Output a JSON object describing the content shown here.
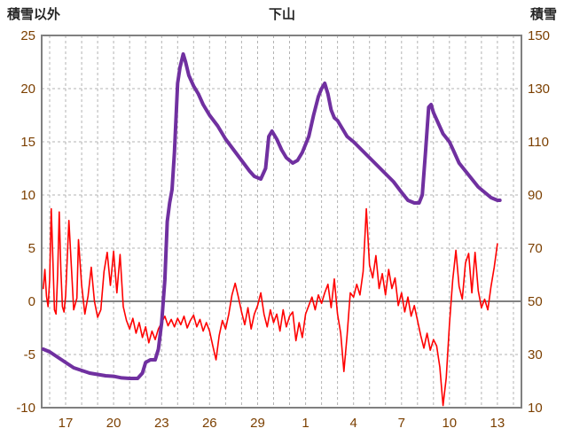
{
  "header": {
    "left_axis_title": "積雪以外",
    "chart_title": "下山",
    "right_axis_title": "積雪"
  },
  "colors": {
    "background": "#ffffff",
    "frame": "#808080",
    "zero_line": "#808080",
    "gridline": "#b3b3b3",
    "tick_label": "#7b3f00",
    "header_text": "#262626",
    "series_other": "#ff0000",
    "series_snow": "#7030a0"
  },
  "chart_data": {
    "type": "line",
    "title": "下山",
    "grid": true,
    "legend_position": "none",
    "x_domain": [
      15.5,
      45.5
    ],
    "x_gridline_step": 1,
    "x_ticks": [
      {
        "x": 17,
        "label": "17"
      },
      {
        "x": 20,
        "label": "20"
      },
      {
        "x": 23,
        "label": "23"
      },
      {
        "x": 26,
        "label": "26"
      },
      {
        "x": 29,
        "label": "29"
      },
      {
        "x": 32,
        "label": "1"
      },
      {
        "x": 35,
        "label": "4"
      },
      {
        "x": 38,
        "label": "7"
      },
      {
        "x": 41,
        "label": "10"
      },
      {
        "x": 44,
        "label": "13"
      }
    ],
    "left_axis": {
      "label": "積雪以外",
      "min": -10,
      "max": 25,
      "tick_step": 5
    },
    "right_axis": {
      "label": "積雪",
      "min": 10,
      "max": 150,
      "tick_step": 20
    },
    "series": [
      {
        "name": "積雪以外",
        "axis": "left",
        "color": "#ff0000",
        "width": 1.6,
        "points": [
          [
            15.6,
            1.2
          ],
          [
            15.7,
            3.0
          ],
          [
            15.8,
            0.5
          ],
          [
            15.9,
            -0.5
          ],
          [
            16.0,
            2.0
          ],
          [
            16.1,
            8.7
          ],
          [
            16.2,
            4.0
          ],
          [
            16.3,
            -0.8
          ],
          [
            16.4,
            -1.2
          ],
          [
            16.5,
            2.5
          ],
          [
            16.6,
            8.4
          ],
          [
            16.7,
            3.0
          ],
          [
            16.8,
            -0.5
          ],
          [
            16.9,
            -1.0
          ],
          [
            17.0,
            0.5
          ],
          [
            17.2,
            7.6
          ],
          [
            17.4,
            2.0
          ],
          [
            17.5,
            -0.8
          ],
          [
            17.7,
            0.3
          ],
          [
            17.8,
            5.8
          ],
          [
            18.0,
            1.5
          ],
          [
            18.2,
            -1.2
          ],
          [
            18.4,
            0.5
          ],
          [
            18.6,
            3.2
          ],
          [
            18.8,
            0.0
          ],
          [
            19.0,
            -1.5
          ],
          [
            19.2,
            -0.8
          ],
          [
            19.4,
            2.8
          ],
          [
            19.6,
            4.6
          ],
          [
            19.8,
            1.5
          ],
          [
            20.0,
            4.7
          ],
          [
            20.2,
            0.8
          ],
          [
            20.4,
            4.4
          ],
          [
            20.6,
            -0.5
          ],
          [
            20.8,
            -1.8
          ],
          [
            21.0,
            -2.6
          ],
          [
            21.2,
            -1.6
          ],
          [
            21.4,
            -3.0
          ],
          [
            21.6,
            -2.0
          ],
          [
            21.8,
            -3.4
          ],
          [
            22.0,
            -2.4
          ],
          [
            22.2,
            -3.9
          ],
          [
            22.4,
            -2.8
          ],
          [
            22.6,
            -3.6
          ],
          [
            22.8,
            -2.6
          ],
          [
            23.0,
            -2.0
          ],
          [
            23.2,
            -1.4
          ],
          [
            23.4,
            -2.3
          ],
          [
            23.6,
            -1.7
          ],
          [
            23.8,
            -2.4
          ],
          [
            24.0,
            -1.6
          ],
          [
            24.2,
            -2.2
          ],
          [
            24.4,
            -1.4
          ],
          [
            24.6,
            -2.5
          ],
          [
            24.8,
            -1.8
          ],
          [
            25.0,
            -1.3
          ],
          [
            25.2,
            -2.4
          ],
          [
            25.4,
            -1.7
          ],
          [
            25.6,
            -2.8
          ],
          [
            25.8,
            -2.0
          ],
          [
            26.0,
            -2.8
          ],
          [
            26.2,
            -4.2
          ],
          [
            26.4,
            -5.5
          ],
          [
            26.6,
            -3.2
          ],
          [
            26.8,
            -1.8
          ],
          [
            27.0,
            -2.6
          ],
          [
            27.2,
            -1.2
          ],
          [
            27.4,
            0.6
          ],
          [
            27.6,
            1.7
          ],
          [
            27.8,
            0.4
          ],
          [
            28.0,
            -1.0
          ],
          [
            28.2,
            -2.2
          ],
          [
            28.4,
            -0.6
          ],
          [
            28.6,
            -2.6
          ],
          [
            28.8,
            -1.2
          ],
          [
            29.0,
            -0.4
          ],
          [
            29.2,
            0.8
          ],
          [
            29.4,
            -1.2
          ],
          [
            29.6,
            -2.4
          ],
          [
            29.8,
            -0.8
          ],
          [
            30.0,
            -2.0
          ],
          [
            30.2,
            -1.2
          ],
          [
            30.4,
            -2.8
          ],
          [
            30.6,
            -0.8
          ],
          [
            30.8,
            -2.4
          ],
          [
            31.0,
            -1.4
          ],
          [
            31.2,
            -1.0
          ],
          [
            31.4,
            -3.7
          ],
          [
            31.6,
            -2.0
          ],
          [
            31.8,
            -3.4
          ],
          [
            32.0,
            -1.2
          ],
          [
            32.2,
            -0.4
          ],
          [
            32.4,
            0.4
          ],
          [
            32.6,
            -0.8
          ],
          [
            32.8,
            0.6
          ],
          [
            33.0,
            -0.2
          ],
          [
            33.2,
            0.8
          ],
          [
            33.4,
            1.6
          ],
          [
            33.6,
            -0.6
          ],
          [
            33.8,
            2.1
          ],
          [
            34.0,
            -1.2
          ],
          [
            34.2,
            -3.0
          ],
          [
            34.4,
            -6.6
          ],
          [
            34.6,
            -3.2
          ],
          [
            34.8,
            0.8
          ],
          [
            35.0,
            0.4
          ],
          [
            35.2,
            1.6
          ],
          [
            35.4,
            0.6
          ],
          [
            35.6,
            2.8
          ],
          [
            35.8,
            8.7
          ],
          [
            36.0,
            3.4
          ],
          [
            36.2,
            2.2
          ],
          [
            36.4,
            4.3
          ],
          [
            36.6,
            1.2
          ],
          [
            36.8,
            2.6
          ],
          [
            37.0,
            0.6
          ],
          [
            37.2,
            3.0
          ],
          [
            37.4,
            1.2
          ],
          [
            37.6,
            2.2
          ],
          [
            37.8,
            -0.4
          ],
          [
            38.0,
            0.8
          ],
          [
            38.2,
            -1.0
          ],
          [
            38.4,
            0.4
          ],
          [
            38.6,
            -1.4
          ],
          [
            38.8,
            -0.4
          ],
          [
            39.0,
            -1.8
          ],
          [
            39.2,
            -3.2
          ],
          [
            39.4,
            -4.4
          ],
          [
            39.6,
            -3.0
          ],
          [
            39.8,
            -4.6
          ],
          [
            40.0,
            -3.6
          ],
          [
            40.2,
            -4.2
          ],
          [
            40.4,
            -6.2
          ],
          [
            40.6,
            -9.8
          ],
          [
            40.8,
            -7.2
          ],
          [
            41.0,
            -2.2
          ],
          [
            41.2,
            2.0
          ],
          [
            41.4,
            4.8
          ],
          [
            41.6,
            1.4
          ],
          [
            41.8,
            0.2
          ],
          [
            42.0,
            3.6
          ],
          [
            42.2,
            4.5
          ],
          [
            42.4,
            0.8
          ],
          [
            42.6,
            4.6
          ],
          [
            42.8,
            1.0
          ],
          [
            43.0,
            -0.6
          ],
          [
            43.2,
            0.2
          ],
          [
            43.4,
            -0.8
          ],
          [
            43.6,
            1.4
          ],
          [
            43.8,
            3.2
          ],
          [
            44.0,
            5.4
          ]
        ]
      },
      {
        "name": "積雪",
        "axis": "right",
        "color": "#7030a0",
        "width": 4,
        "points": [
          [
            15.6,
            32
          ],
          [
            16.0,
            31
          ],
          [
            16.5,
            29
          ],
          [
            17.0,
            27
          ],
          [
            17.5,
            25
          ],
          [
            18.0,
            24
          ],
          [
            18.5,
            23
          ],
          [
            19.0,
            22.5
          ],
          [
            19.5,
            22
          ],
          [
            20.0,
            21.8
          ],
          [
            20.5,
            21.2
          ],
          [
            21.0,
            21
          ],
          [
            21.5,
            21
          ],
          [
            21.8,
            23
          ],
          [
            22.0,
            27
          ],
          [
            22.3,
            28
          ],
          [
            22.6,
            28
          ],
          [
            22.8,
            32
          ],
          [
            23.0,
            42
          ],
          [
            23.2,
            58
          ],
          [
            23.35,
            80
          ],
          [
            23.5,
            87
          ],
          [
            23.65,
            92
          ],
          [
            23.8,
            106
          ],
          [
            24.0,
            132
          ],
          [
            24.15,
            138
          ],
          [
            24.35,
            143
          ],
          [
            24.5,
            140
          ],
          [
            24.7,
            135
          ],
          [
            25.0,
            131
          ],
          [
            25.3,
            128
          ],
          [
            25.6,
            124
          ],
          [
            26.0,
            120
          ],
          [
            26.5,
            116
          ],
          [
            27.0,
            111
          ],
          [
            27.5,
            107
          ],
          [
            28.0,
            103
          ],
          [
            28.5,
            99
          ],
          [
            28.8,
            97
          ],
          [
            29.2,
            96
          ],
          [
            29.5,
            100
          ],
          [
            29.7,
            112
          ],
          [
            29.9,
            114
          ],
          [
            30.2,
            111
          ],
          [
            30.5,
            107
          ],
          [
            30.8,
            104
          ],
          [
            31.2,
            102
          ],
          [
            31.5,
            103
          ],
          [
            31.8,
            106
          ],
          [
            32.2,
            112
          ],
          [
            32.5,
            120
          ],
          [
            32.8,
            127
          ],
          [
            33.0,
            130
          ],
          [
            33.2,
            132
          ],
          [
            33.4,
            128
          ],
          [
            33.6,
            122
          ],
          [
            33.8,
            119
          ],
          [
            34.0,
            118
          ],
          [
            34.3,
            115
          ],
          [
            34.6,
            112
          ],
          [
            35.0,
            110
          ],
          [
            35.5,
            107
          ],
          [
            36.0,
            104
          ],
          [
            36.5,
            101
          ],
          [
            37.0,
            98
          ],
          [
            37.5,
            95
          ],
          [
            38.0,
            91
          ],
          [
            38.4,
            88
          ],
          [
            38.8,
            87
          ],
          [
            39.1,
            87
          ],
          [
            39.3,
            90
          ],
          [
            39.5,
            106
          ],
          [
            39.7,
            123
          ],
          [
            39.85,
            124
          ],
          [
            40.0,
            121
          ],
          [
            40.3,
            117
          ],
          [
            40.6,
            113
          ],
          [
            41.0,
            110
          ],
          [
            41.3,
            106
          ],
          [
            41.6,
            102
          ],
          [
            42.0,
            99
          ],
          [
            42.4,
            96
          ],
          [
            42.8,
            93
          ],
          [
            43.2,
            91
          ],
          [
            43.6,
            89
          ],
          [
            44.0,
            88
          ],
          [
            44.15,
            88
          ]
        ]
      }
    ]
  }
}
